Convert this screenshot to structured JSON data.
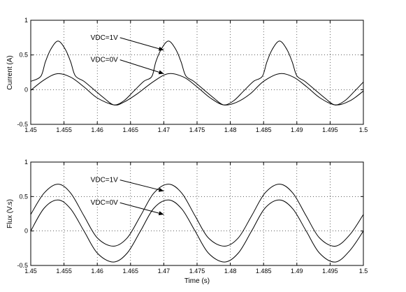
{
  "chart_data": [
    {
      "type": "line",
      "title": "",
      "xlabel": "",
      "ylabel": "Current (A)",
      "xlim": [
        1.45,
        1.5
      ],
      "ylim": [
        -0.5,
        1
      ],
      "grid": true,
      "xticks": [
        "1.45",
        "1.455",
        "1.46",
        "1.465",
        "1.47",
        "1.475",
        "1.48",
        "1.485",
        "1.49",
        "1.495",
        "1.5"
      ],
      "yticks": [
        "-0.5",
        "0",
        "0.5",
        "1"
      ],
      "series": [
        {
          "name": "VDC=1V",
          "x": [
            1.45,
            1.4515,
            1.4522,
            1.453,
            1.4541,
            1.4552,
            1.456,
            1.4567,
            1.458,
            1.4595,
            1.461,
            1.4625,
            1.464,
            1.4655,
            1.467,
            1.4682,
            1.4688,
            1.4696,
            1.4707,
            1.4718,
            1.4726,
            1.4733,
            1.4745,
            1.476,
            1.4775,
            1.479,
            1.4805,
            1.482,
            1.4835,
            1.4848,
            1.4855,
            1.4863,
            1.4874,
            1.4885,
            1.4893,
            1.49,
            1.4912,
            1.4927,
            1.4942,
            1.4957,
            1.4972,
            1.4987,
            1.5
          ],
          "values": [
            0.12,
            0.19,
            0.4,
            0.58,
            0.7,
            0.58,
            0.4,
            0.2,
            0.12,
            0.0,
            -0.12,
            -0.22,
            -0.16,
            -0.02,
            0.12,
            0.19,
            0.4,
            0.58,
            0.7,
            0.58,
            0.4,
            0.2,
            0.12,
            0.0,
            -0.12,
            -0.22,
            -0.16,
            -0.02,
            0.12,
            0.19,
            0.4,
            0.58,
            0.7,
            0.58,
            0.4,
            0.2,
            0.12,
            0.0,
            -0.12,
            -0.22,
            -0.16,
            -0.02,
            0.11
          ]
        },
        {
          "name": "VDC=0V",
          "x": [
            1.45,
            1.452,
            1.454,
            1.456,
            1.458,
            1.46,
            1.4625,
            1.464,
            1.466,
            1.4685,
            1.4707,
            1.473,
            1.475,
            1.477,
            1.479,
            1.481,
            1.483,
            1.485,
            1.4874,
            1.4895,
            1.4915,
            1.4935,
            1.4958,
            1.498,
            1.5
          ],
          "values": [
            -0.01,
            0.14,
            0.23,
            0.18,
            0.04,
            -0.12,
            -0.22,
            -0.18,
            -0.06,
            0.12,
            0.23,
            0.18,
            0.04,
            -0.12,
            -0.22,
            -0.18,
            -0.06,
            0.12,
            0.23,
            0.18,
            0.04,
            -0.12,
            -0.22,
            -0.16,
            -0.02
          ]
        }
      ],
      "annotations": [
        {
          "text": "VDC=1V",
          "x": 1.459,
          "y": 0.75,
          "arrow_to": [
            1.47,
            0.57
          ]
        },
        {
          "text": "VDC=0V",
          "x": 1.459,
          "y": 0.43,
          "arrow_to": [
            1.47,
            0.23
          ]
        }
      ]
    },
    {
      "type": "line",
      "title": "",
      "xlabel": "Time (s)",
      "ylabel": "Flux (V.s)",
      "xlim": [
        1.45,
        1.5
      ],
      "ylim": [
        -0.5,
        1
      ],
      "grid": true,
      "xticks": [
        "1.45",
        "1.455",
        "1.46",
        "1.465",
        "1.47",
        "1.475",
        "1.48",
        "1.485",
        "1.49",
        "1.495",
        "1.5"
      ],
      "yticks": [
        "-0.5",
        "0",
        "0.5",
        "1"
      ],
      "series": [
        {
          "name": "VDC=1V",
          "x": [
            1.45,
            1.452,
            1.4541,
            1.456,
            1.458,
            1.46,
            1.4624,
            1.4645,
            1.4665,
            1.4685,
            1.4707,
            1.4727,
            1.4747,
            1.4767,
            1.4791,
            1.4812,
            1.4832,
            1.4852,
            1.4874,
            1.4894,
            1.4914,
            1.4934,
            1.4958,
            1.498,
            1.5
          ],
          "values": [
            0.24,
            0.55,
            0.68,
            0.55,
            0.22,
            -0.1,
            -0.22,
            -0.1,
            0.22,
            0.55,
            0.68,
            0.55,
            0.22,
            -0.1,
            -0.22,
            -0.1,
            0.22,
            0.55,
            0.68,
            0.55,
            0.22,
            -0.1,
            -0.22,
            -0.05,
            0.24
          ]
        },
        {
          "name": "VDC=0V",
          "x": [
            1.45,
            1.452,
            1.4541,
            1.456,
            1.458,
            1.46,
            1.4624,
            1.4645,
            1.4665,
            1.4685,
            1.4707,
            1.4727,
            1.4747,
            1.4767,
            1.4791,
            1.4812,
            1.4832,
            1.4852,
            1.4874,
            1.4894,
            1.4914,
            1.4934,
            1.4958,
            1.498,
            1.5
          ],
          "values": [
            0.0,
            0.33,
            0.45,
            0.32,
            0.0,
            -0.32,
            -0.45,
            -0.32,
            0.0,
            0.33,
            0.45,
            0.32,
            0.0,
            -0.32,
            -0.45,
            -0.32,
            0.0,
            0.33,
            0.45,
            0.32,
            0.0,
            -0.32,
            -0.45,
            -0.28,
            0.0
          ]
        }
      ],
      "annotations": [
        {
          "text": "VDC=1V",
          "x": 1.459,
          "y": 0.74,
          "arrow_to": [
            1.47,
            0.58
          ]
        },
        {
          "text": "VDC=0V",
          "x": 1.459,
          "y": 0.41,
          "arrow_to": [
            1.47,
            0.24
          ]
        }
      ]
    }
  ]
}
